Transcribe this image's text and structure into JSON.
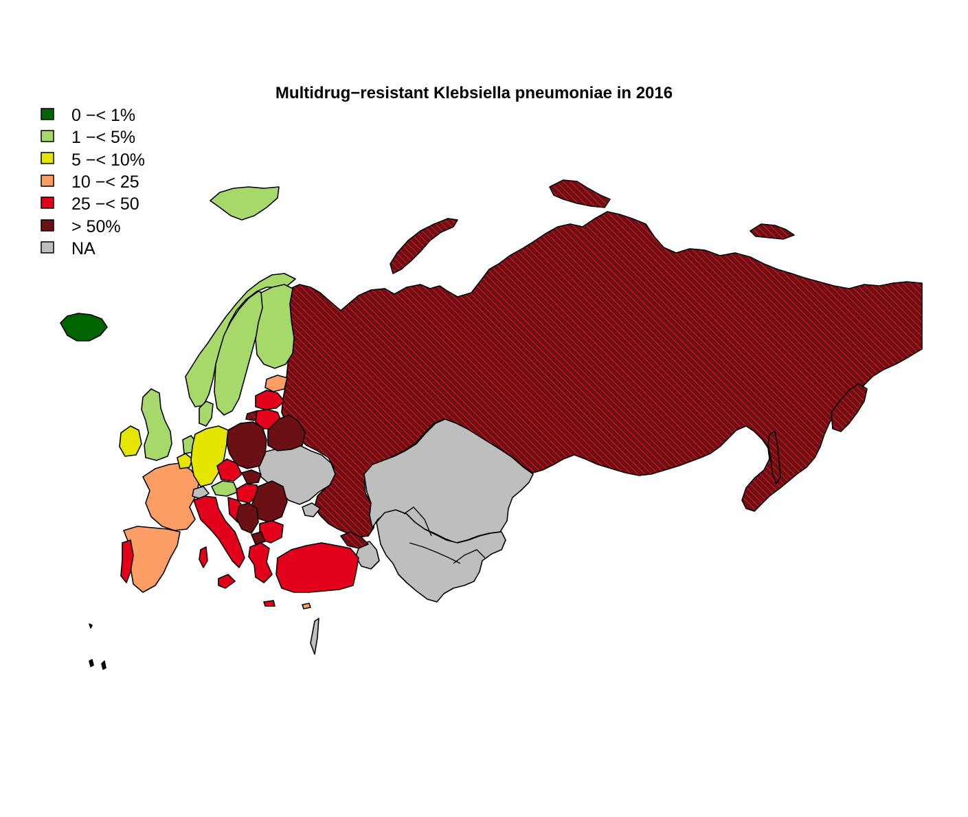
{
  "map": {
    "title": "Multidrug−resistant Klebsiella pneumoniae in 2016",
    "legend": [
      {
        "label": "0 −< 1%",
        "color": "#006400"
      },
      {
        "label": "1 −< 5%",
        "color": "#a6d96a"
      },
      {
        "label": "5 −< 10%",
        "color": "#e5e500"
      },
      {
        "label": "10 −< 25",
        "color": "#fc9d66"
      },
      {
        "label": "25 −< 50",
        "color": "#e2001a"
      },
      {
        "label": "> 50%",
        "color": "#6b1015"
      },
      {
        "label": "NA",
        "color": "#bebebe"
      }
    ],
    "hatch": {
      "fill": "#6b1015",
      "line": "#c4121c"
    }
  },
  "chart_data": {
    "type": "choropleth",
    "title": "Multidrug−resistant Klebsiella pneumoniae in 2016",
    "classes": [
      "0 −< 1%",
      "1 −< 5%",
      "5 −< 10%",
      "10 −< 25",
      "25 −< 50",
      "> 50%",
      "NA"
    ],
    "regions": [
      {
        "name": "Iceland",
        "class": "0 −< 1%"
      },
      {
        "name": "Svalbard",
        "class": "1 −< 5%"
      },
      {
        "name": "Norway",
        "class": "1 −< 5%"
      },
      {
        "name": "Sweden",
        "class": "1 −< 5%"
      },
      {
        "name": "Finland",
        "class": "1 −< 5%"
      },
      {
        "name": "United Kingdom",
        "class": "1 −< 5%"
      },
      {
        "name": "Denmark",
        "class": "1 −< 5%"
      },
      {
        "name": "Netherlands",
        "class": "1 −< 5%"
      },
      {
        "name": "Austria",
        "class": "1 −< 5%"
      },
      {
        "name": "Ireland",
        "class": "5 −< 10%"
      },
      {
        "name": "Germany",
        "class": "5 −< 10%"
      },
      {
        "name": "Belgium",
        "class": "5 −< 10%"
      },
      {
        "name": "France",
        "class": "10 −< 25"
      },
      {
        "name": "Spain",
        "class": "10 −< 25"
      },
      {
        "name": "Estonia",
        "class": "10 −< 25"
      },
      {
        "name": "Portugal",
        "class": "25 −< 50"
      },
      {
        "name": "Italy",
        "class": "25 −< 50"
      },
      {
        "name": "Latvia",
        "class": "25 −< 50"
      },
      {
        "name": "Lithuania",
        "class": "25 −< 50"
      },
      {
        "name": "Czech Republic",
        "class": "25 −< 50"
      },
      {
        "name": "Hungary",
        "class": "25 −< 50"
      },
      {
        "name": "Croatia",
        "class": "25 −< 50"
      },
      {
        "name": "Bulgaria",
        "class": "25 −< 50"
      },
      {
        "name": "Greece",
        "class": "25 −< 50"
      },
      {
        "name": "Turkey",
        "class": "25 −< 50"
      },
      {
        "name": "Poland",
        "class": "> 50%"
      },
      {
        "name": "Belarus",
        "class": "> 50%"
      },
      {
        "name": "Slovakia",
        "class": "> 50%"
      },
      {
        "name": "Romania",
        "class": "> 50%"
      },
      {
        "name": "Serbia",
        "class": "> 50%"
      },
      {
        "name": "Russia",
        "class": "> 50%",
        "hatched": true
      },
      {
        "name": "Georgia",
        "class": "25 −< 50",
        "hatched": true
      },
      {
        "name": "Ukraine",
        "class": "NA"
      },
      {
        "name": "Kazakhstan",
        "class": "NA"
      },
      {
        "name": "Central Asia",
        "class": "NA"
      },
      {
        "name": "Armenia/Azerbaijan",
        "class": "NA"
      }
    ]
  }
}
